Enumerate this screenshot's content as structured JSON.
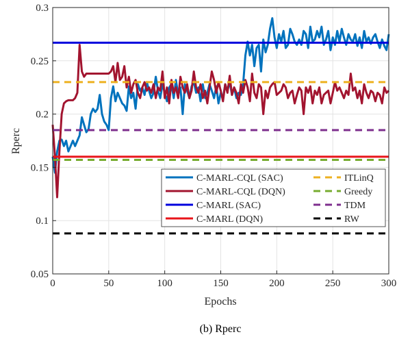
{
  "chart_data": {
    "type": "line",
    "xlabel": "Epochs",
    "ylabel": "Rperc",
    "caption": "(b) Rperc",
    "xlim": [
      0,
      300
    ],
    "ylim": [
      0.05,
      0.3
    ],
    "xticks": [
      "0",
      "50",
      "100",
      "150",
      "200",
      "250",
      "300"
    ],
    "yticks": [
      "0.05",
      "0.1",
      "0.15",
      "0.2",
      "0.25",
      "0.3"
    ],
    "grid": true,
    "legend_position": "lower-right",
    "series": [
      {
        "name": "C-MARL-CQL (SAC)",
        "color": "#0072BD",
        "style": "solid",
        "x": [
          0,
          2,
          4,
          6,
          8,
          10,
          12,
          14,
          16,
          18,
          20,
          22,
          24,
          26,
          28,
          30,
          32,
          34,
          36,
          38,
          40,
          42,
          44,
          46,
          48,
          50,
          52,
          54,
          56,
          58,
          60,
          62,
          64,
          66,
          68,
          70,
          72,
          74,
          76,
          78,
          80,
          82,
          84,
          86,
          88,
          90,
          92,
          94,
          96,
          98,
          100,
          102,
          104,
          106,
          108,
          110,
          112,
          114,
          116,
          118,
          120,
          122,
          124,
          126,
          128,
          130,
          132,
          134,
          136,
          138,
          140,
          142,
          144,
          146,
          148,
          150,
          152,
          154,
          156,
          158,
          160,
          162,
          164,
          166,
          168,
          170,
          172,
          174,
          176,
          178,
          180,
          182,
          184,
          186,
          188,
          190,
          192,
          194,
          196,
          198,
          200,
          202,
          204,
          206,
          208,
          210,
          212,
          214,
          216,
          218,
          220,
          222,
          224,
          226,
          228,
          230,
          232,
          234,
          236,
          238,
          240,
          242,
          244,
          246,
          248,
          250,
          252,
          254,
          256,
          258,
          260,
          262,
          264,
          266,
          268,
          270,
          272,
          274,
          276,
          278,
          280,
          282,
          284,
          286,
          288,
          290,
          292,
          294,
          296,
          298,
          300
        ],
        "y": [
          0.16,
          0.145,
          0.165,
          0.175,
          0.176,
          0.17,
          0.175,
          0.165,
          0.17,
          0.175,
          0.17,
          0.175,
          0.18,
          0.197,
          0.19,
          0.183,
          0.186,
          0.2,
          0.205,
          0.202,
          0.205,
          0.218,
          0.2,
          0.193,
          0.19,
          0.185,
          0.215,
          0.226,
          0.212,
          0.22,
          0.215,
          0.21,
          0.208,
          0.203,
          0.226,
          0.215,
          0.22,
          0.205,
          0.228,
          0.222,
          0.225,
          0.218,
          0.23,
          0.222,
          0.215,
          0.22,
          0.235,
          0.222,
          0.215,
          0.228,
          0.22,
          0.212,
          0.225,
          0.228,
          0.215,
          0.232,
          0.218,
          0.225,
          0.2,
          0.228,
          0.222,
          0.215,
          0.226,
          0.23,
          0.22,
          0.225,
          0.212,
          0.228,
          0.215,
          0.22,
          0.228,
          0.222,
          0.215,
          0.226,
          0.21,
          0.22,
          0.215,
          0.228,
          0.222,
          0.23,
          0.218,
          0.225,
          0.215,
          0.22,
          0.218,
          0.228,
          0.255,
          0.268,
          0.255,
          0.265,
          0.245,
          0.262,
          0.265,
          0.24,
          0.27,
          0.258,
          0.265,
          0.28,
          0.29,
          0.272,
          0.262,
          0.275,
          0.268,
          0.278,
          0.262,
          0.265,
          0.28,
          0.275,
          0.268,
          0.265,
          0.27,
          0.265,
          0.278,
          0.275,
          0.262,
          0.282,
          0.268,
          0.27,
          0.278,
          0.272,
          0.282,
          0.265,
          0.27,
          0.278,
          0.26,
          0.272,
          0.265,
          0.278,
          0.268,
          0.28,
          0.272,
          0.265,
          0.275,
          0.27,
          0.268,
          0.275,
          0.264,
          0.272,
          0.262,
          0.278,
          0.268,
          0.272,
          0.266,
          0.272,
          0.275,
          0.268,
          0.262,
          0.27,
          0.264,
          0.26,
          0.275
        ]
      },
      {
        "name": "C-MARL-CQL (DQN)",
        "color": "#A2142F",
        "style": "solid",
        "x": [
          0,
          2,
          4,
          6,
          8,
          10,
          12,
          14,
          16,
          18,
          20,
          22,
          24,
          26,
          28,
          30,
          32,
          34,
          36,
          38,
          40,
          42,
          44,
          46,
          48,
          50,
          52,
          54,
          56,
          58,
          60,
          62,
          64,
          66,
          68,
          70,
          72,
          74,
          76,
          78,
          80,
          82,
          84,
          86,
          88,
          90,
          92,
          94,
          96,
          98,
          100,
          102,
          104,
          106,
          108,
          110,
          112,
          114,
          116,
          118,
          120,
          122,
          124,
          126,
          128,
          130,
          132,
          134,
          136,
          138,
          140,
          142,
          144,
          146,
          148,
          150,
          152,
          154,
          156,
          158,
          160,
          162,
          164,
          166,
          168,
          170,
          172,
          174,
          176,
          178,
          180,
          182,
          184,
          186,
          188,
          190,
          192,
          194,
          196,
          198,
          200,
          202,
          204,
          206,
          208,
          210,
          212,
          214,
          216,
          218,
          220,
          222,
          224,
          226,
          228,
          230,
          232,
          234,
          236,
          238,
          240,
          242,
          244,
          246,
          248,
          250,
          252,
          254,
          256,
          258,
          260,
          262,
          264,
          266,
          268,
          270,
          272,
          274,
          276,
          278,
          280,
          282,
          284,
          286,
          288,
          290,
          292,
          294,
          296,
          298,
          300
        ],
        "y": [
          0.19,
          0.16,
          0.122,
          0.165,
          0.2,
          0.21,
          0.212,
          0.213,
          0.213,
          0.213,
          0.215,
          0.22,
          0.265,
          0.24,
          0.235,
          0.238,
          0.238,
          0.238,
          0.238,
          0.238,
          0.238,
          0.238,
          0.238,
          0.238,
          0.238,
          0.238,
          0.24,
          0.245,
          0.23,
          0.248,
          0.232,
          0.235,
          0.245,
          0.225,
          0.235,
          0.22,
          0.228,
          0.232,
          0.22,
          0.215,
          0.225,
          0.23,
          0.222,
          0.225,
          0.22,
          0.228,
          0.215,
          0.225,
          0.222,
          0.24,
          0.215,
          0.225,
          0.21,
          0.232,
          0.22,
          0.225,
          0.215,
          0.235,
          0.225,
          0.22,
          0.228,
          0.215,
          0.222,
          0.24,
          0.225,
          0.22,
          0.228,
          0.215,
          0.222,
          0.21,
          0.225,
          0.24,
          0.232,
          0.22,
          0.23,
          0.222,
          0.212,
          0.228,
          0.22,
          0.236,
          0.218,
          0.225,
          0.22,
          0.21,
          0.228,
          0.22,
          0.232,
          0.225,
          0.212,
          0.238,
          0.22,
          0.215,
          0.228,
          0.225,
          0.2,
          0.222,
          0.215,
          0.225,
          0.228,
          0.23,
          0.218,
          0.22,
          0.222,
          0.228,
          0.225,
          0.215,
          0.22,
          0.222,
          0.21,
          0.218,
          0.225,
          0.222,
          0.2,
          0.225,
          0.22,
          0.226,
          0.21,
          0.222,
          0.218,
          0.225,
          0.21,
          0.218,
          0.22,
          0.222,
          0.21,
          0.22,
          0.23,
          0.222,
          0.225,
          0.22,
          0.215,
          0.222,
          0.218,
          0.238,
          0.222,
          0.225,
          0.215,
          0.222,
          0.21,
          0.228,
          0.22,
          0.215,
          0.222,
          0.22,
          0.212,
          0.22,
          0.218,
          0.21,
          0.225,
          0.22,
          0.222
        ]
      },
      {
        "name": "C-MARL (SAC)",
        "color": "#0000DD",
        "style": "solid",
        "constant": 0.267
      },
      {
        "name": "C-MARL (DQN)",
        "color": "#E8141A",
        "style": "solid",
        "constant": 0.16
      },
      {
        "name": "ITLinQ",
        "color": "#EDB120",
        "style": "dashed",
        "constant": 0.23
      },
      {
        "name": "Greedy",
        "color": "#77AC30",
        "style": "dashed",
        "constant": 0.157
      },
      {
        "name": "TDM",
        "color": "#7E2F8E",
        "style": "dashed",
        "constant": 0.185
      },
      {
        "name": "RW",
        "color": "#000000",
        "style": "dashed",
        "constant": 0.088
      }
    ]
  }
}
